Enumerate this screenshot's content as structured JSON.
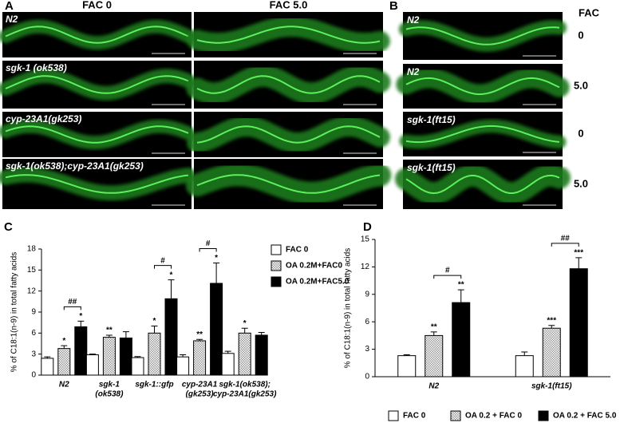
{
  "panel_a": {
    "label": "A",
    "columns": [
      "FAC 0",
      "FAC 5.0"
    ],
    "rows": [
      "N2",
      "sgk-1 (ok538)",
      "cyp-23A1(gk253)",
      "sgk-1(ok538);cyp-23A1(gk253)"
    ]
  },
  "panel_b": {
    "label": "B",
    "header": "FAC",
    "rows": [
      {
        "strain": "N2",
        "fac": "0"
      },
      {
        "strain": "N2",
        "fac": "5.0"
      },
      {
        "strain": "sgk-1(ft15)",
        "fac": "0"
      },
      {
        "strain": "sgk-1(ft15)",
        "fac": "5.0"
      }
    ]
  },
  "chart_data": [
    {
      "type": "bar",
      "panel": "C",
      "y_label": "% of C18:1(n-9) in total fatty acids",
      "categories": [
        [
          "N2"
        ],
        [
          "sgk-1",
          "(ok538)"
        ],
        [
          "sgk-1::gfp"
        ],
        [
          "cyp-23A1",
          "(gk253)"
        ],
        [
          "sgk-1(ok538);",
          "cyp-23A1(gk253)"
        ]
      ],
      "series": [
        {
          "name": "FAC 0",
          "color": "#ffffff",
          "hatch": false,
          "values": [
            2.4,
            2.9,
            2.5,
            2.6,
            3.1
          ],
          "errors": [
            0.2,
            0.1,
            0.15,
            0.3,
            0.3
          ],
          "stars": [
            null,
            null,
            null,
            null,
            null
          ]
        },
        {
          "name": "OA 0.2M+FAC0",
          "color": "#9a9a9a",
          "hatch": true,
          "values": [
            3.8,
            5.4,
            6.0,
            4.9,
            6.0
          ],
          "errors": [
            0.4,
            0.3,
            1.0,
            0.2,
            0.7
          ],
          "stars": [
            "*",
            "**",
            "*",
            "**",
            "*"
          ]
        },
        {
          "name": "OA 0.2M+FAC5.0",
          "color": "#000000",
          "hatch": false,
          "values": [
            6.9,
            5.3,
            10.9,
            13.1,
            5.7
          ],
          "errors": [
            0.8,
            0.9,
            2.7,
            2.9,
            0.4
          ],
          "stars": [
            "*",
            null,
            "*",
            "*",
            null
          ]
        }
      ],
      "bracket_labels": [
        "##",
        null,
        "#",
        "#",
        null
      ],
      "ylim": [
        0,
        18
      ],
      "yticks": [
        0,
        3,
        6,
        9,
        12,
        15,
        18
      ],
      "legend": "right"
    },
    {
      "type": "bar",
      "panel": "D",
      "y_label": "% of C18:1(n-9) in total fatty acids",
      "categories": [
        [
          "N2"
        ],
        [
          "sgk-1(ft15)"
        ]
      ],
      "series": [
        {
          "name": "FAC 0",
          "color": "#ffffff",
          "hatch": false,
          "values": [
            2.3,
            2.3
          ],
          "errors": [
            0.1,
            0.4
          ],
          "stars": [
            null,
            null
          ]
        },
        {
          "name": "OA 0.2 + FAC 0",
          "color": "#9a9a9a",
          "hatch": true,
          "values": [
            4.5,
            5.3
          ],
          "errors": [
            0.4,
            0.3
          ],
          "stars": [
            "**",
            "***"
          ]
        },
        {
          "name": "OA 0.2 + FAC 5.0",
          "color": "#000000",
          "hatch": false,
          "values": [
            8.1,
            11.8
          ],
          "errors": [
            1.4,
            1.2
          ],
          "stars": [
            "**",
            "***"
          ]
        }
      ],
      "bracket_labels": [
        "#",
        "##"
      ],
      "ylim": [
        0,
        15
      ],
      "yticks": [
        0,
        3,
        6,
        9,
        12,
        15
      ],
      "legend": "bottom"
    }
  ]
}
